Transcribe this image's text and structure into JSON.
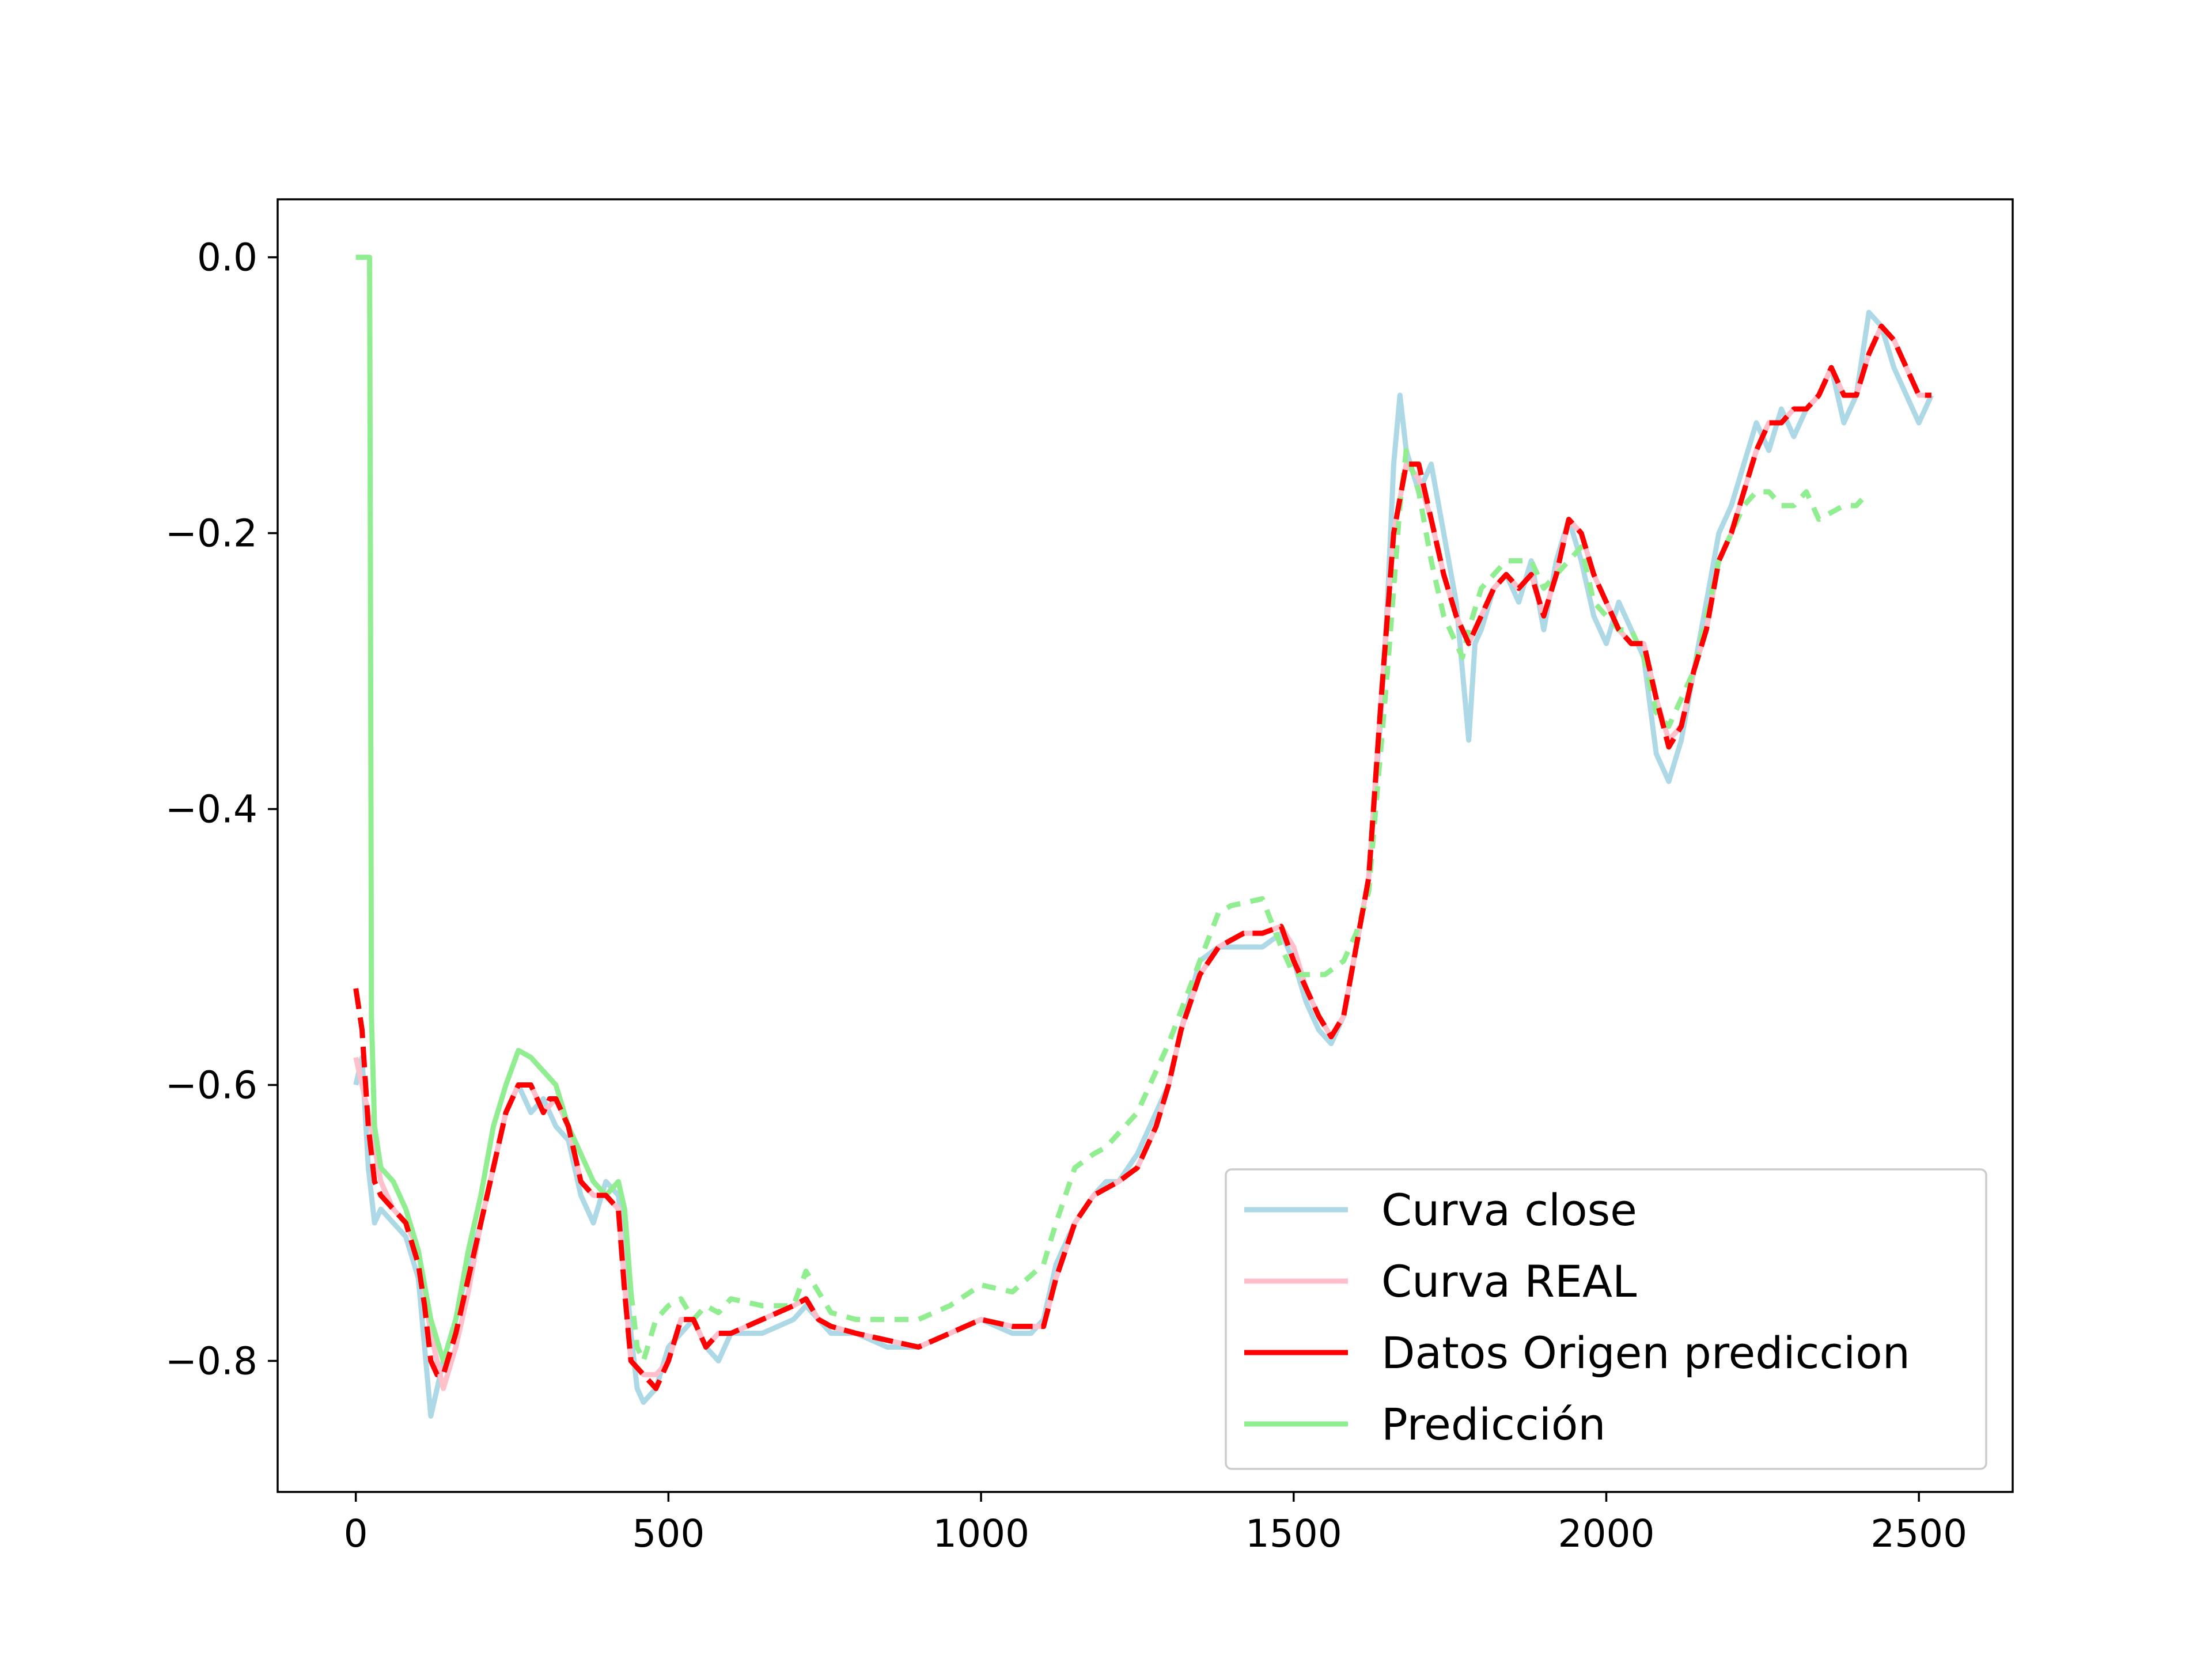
{
  "chart_data": {
    "type": "line",
    "title": "",
    "xlabel": "",
    "ylabel": "",
    "xlim": [
      -125,
      2650
    ],
    "ylim": [
      -0.895,
      0.042
    ],
    "x_ticks": [
      0,
      500,
      1000,
      1500,
      2000,
      2500
    ],
    "x_tick_labels": [
      "0",
      "500",
      "1000",
      "1500",
      "2000",
      "2500"
    ],
    "y_ticks": [
      0.0,
      -0.2,
      -0.4,
      -0.6,
      -0.8
    ],
    "y_tick_labels": [
      "0.0",
      "−0.2",
      "−0.4",
      "−0.6",
      "−0.8"
    ],
    "grid": false,
    "legend_position": "lower-right",
    "series": [
      {
        "name": "Curva close",
        "color": "#add8e6",
        "style": "solid",
        "x": [
          0,
          10,
          20,
          30,
          40,
          60,
          80,
          100,
          110,
          120,
          130,
          140,
          160,
          180,
          200,
          220,
          240,
          260,
          280,
          300,
          320,
          340,
          360,
          380,
          400,
          420,
          430,
          440,
          450,
          460,
          480,
          500,
          520,
          540,
          560,
          580,
          600,
          650,
          700,
          720,
          740,
          760,
          800,
          850,
          900,
          950,
          1000,
          1050,
          1080,
          1100,
          1120,
          1150,
          1180,
          1200,
          1220,
          1250,
          1280,
          1300,
          1320,
          1350,
          1380,
          1400,
          1420,
          1450,
          1480,
          1500,
          1520,
          1540,
          1560,
          1580,
          1600,
          1620,
          1640,
          1650,
          1660,
          1670,
          1680,
          1700,
          1720,
          1740,
          1760,
          1770,
          1780,
          1790,
          1800,
          1820,
          1840,
          1860,
          1880,
          1900,
          1920,
          1940,
          1960,
          1980,
          2000,
          2020,
          2040,
          2060,
          2080,
          2100,
          2120,
          2140,
          2160,
          2180,
          2200,
          2220,
          2240,
          2260,
          2280,
          2300,
          2320,
          2340,
          2360,
          2380,
          2400,
          2420,
          2440,
          2460,
          2480,
          2500,
          2520
        ],
        "y": [
          -0.6,
          -0.58,
          -0.66,
          -0.7,
          -0.69,
          -0.7,
          -0.71,
          -0.74,
          -0.79,
          -0.84,
          -0.82,
          -0.8,
          -0.77,
          -0.73,
          -0.7,
          -0.66,
          -0.62,
          -0.6,
          -0.62,
          -0.61,
          -0.63,
          -0.64,
          -0.68,
          -0.7,
          -0.67,
          -0.68,
          -0.72,
          -0.78,
          -0.82,
          -0.83,
          -0.82,
          -0.79,
          -0.78,
          -0.77,
          -0.79,
          -0.8,
          -0.78,
          -0.78,
          -0.77,
          -0.76,
          -0.77,
          -0.78,
          -0.78,
          -0.79,
          -0.79,
          -0.78,
          -0.77,
          -0.78,
          -0.78,
          -0.77,
          -0.73,
          -0.7,
          -0.68,
          -0.67,
          -0.67,
          -0.65,
          -0.62,
          -0.6,
          -0.56,
          -0.51,
          -0.5,
          -0.5,
          -0.5,
          -0.5,
          -0.49,
          -0.51,
          -0.54,
          -0.56,
          -0.57,
          -0.55,
          -0.5,
          -0.45,
          -0.33,
          -0.25,
          -0.15,
          -0.1,
          -0.14,
          -0.17,
          -0.15,
          -0.2,
          -0.25,
          -0.3,
          -0.35,
          -0.28,
          -0.27,
          -0.24,
          -0.23,
          -0.25,
          -0.22,
          -0.27,
          -0.22,
          -0.19,
          -0.22,
          -0.26,
          -0.28,
          -0.25,
          -0.27,
          -0.29,
          -0.36,
          -0.38,
          -0.35,
          -0.3,
          -0.25,
          -0.2,
          -0.18,
          -0.15,
          -0.12,
          -0.14,
          -0.11,
          -0.13,
          -0.11,
          -0.1,
          -0.08,
          -0.12,
          -0.1,
          -0.04,
          -0.05,
          -0.08,
          -0.1,
          -0.12,
          -0.1
        ]
      },
      {
        "name": "Curva REAL",
        "color": "#ffc0cb",
        "style": "solid",
        "x": [
          0,
          20,
          40,
          60,
          80,
          100,
          120,
          140,
          160,
          180,
          200,
          220,
          240,
          260,
          280,
          300,
          320,
          340,
          360,
          380,
          400,
          420,
          440,
          460,
          480,
          500,
          520,
          540,
          560,
          580,
          600,
          650,
          700,
          720,
          740,
          760,
          800,
          850,
          900,
          950,
          1000,
          1050,
          1100,
          1120,
          1150,
          1180,
          1200,
          1220,
          1250,
          1280,
          1300,
          1320,
          1350,
          1380,
          1400,
          1420,
          1450,
          1480,
          1500,
          1520,
          1540,
          1560,
          1580,
          1600,
          1620,
          1640,
          1660,
          1680,
          1700,
          1720,
          1740,
          1760,
          1780,
          1800,
          1820,
          1840,
          1860,
          1880,
          1900,
          1920,
          1940,
          1960,
          1980,
          2000,
          2020,
          2040,
          2060,
          2080,
          2100,
          2120,
          2140,
          2160,
          2180,
          2200,
          2220,
          2240,
          2260,
          2280,
          2300,
          2320,
          2340,
          2360,
          2380,
          2400,
          2420,
          2440,
          2460,
          2480,
          2500,
          2520
        ],
        "y": [
          -0.58,
          -0.62,
          -0.67,
          -0.69,
          -0.7,
          -0.72,
          -0.78,
          -0.82,
          -0.79,
          -0.75,
          -0.7,
          -0.66,
          -0.62,
          -0.6,
          -0.6,
          -0.62,
          -0.61,
          -0.63,
          -0.67,
          -0.68,
          -0.68,
          -0.69,
          -0.8,
          -0.81,
          -0.81,
          -0.8,
          -0.77,
          -0.77,
          -0.79,
          -0.78,
          -0.78,
          -0.77,
          -0.76,
          -0.755,
          -0.77,
          -0.775,
          -0.78,
          -0.785,
          -0.79,
          -0.78,
          -0.77,
          -0.775,
          -0.775,
          -0.74,
          -0.7,
          -0.68,
          -0.675,
          -0.67,
          -0.66,
          -0.63,
          -0.6,
          -0.56,
          -0.52,
          -0.5,
          -0.495,
          -0.49,
          -0.49,
          -0.485,
          -0.5,
          -0.53,
          -0.55,
          -0.565,
          -0.55,
          -0.5,
          -0.45,
          -0.32,
          -0.2,
          -0.15,
          -0.16,
          -0.19,
          -0.23,
          -0.26,
          -0.28,
          -0.26,
          -0.24,
          -0.23,
          -0.24,
          -0.23,
          -0.26,
          -0.23,
          -0.19,
          -0.2,
          -0.23,
          -0.25,
          -0.27,
          -0.28,
          -0.28,
          -0.32,
          -0.35,
          -0.34,
          -0.3,
          -0.27,
          -0.22,
          -0.2,
          -0.17,
          -0.14,
          -0.12,
          -0.12,
          -0.11,
          -0.11,
          -0.1,
          -0.08,
          -0.1,
          -0.1,
          -0.07,
          -0.05,
          -0.06,
          -0.08,
          -0.1,
          -0.1
        ]
      },
      {
        "name": "Datos Origen prediccion",
        "color": "#ff0000",
        "style": "dashed",
        "x": [
          0,
          10,
          20,
          30,
          40,
          60,
          80,
          100,
          110,
          120,
          130,
          140,
          160,
          180,
          200,
          220,
          240,
          260,
          280,
          300,
          310,
          320,
          340,
          360,
          380,
          400,
          420,
          430,
          440,
          460,
          480,
          500,
          520,
          540,
          560,
          580,
          600,
          650,
          700,
          720,
          740,
          760,
          800,
          850,
          900,
          950,
          1000,
          1050,
          1100,
          1120,
          1150,
          1180,
          1200,
          1220,
          1250,
          1280,
          1300,
          1320,
          1350,
          1380,
          1400,
          1420,
          1450,
          1480,
          1500,
          1520,
          1540,
          1560,
          1580,
          1600,
          1620,
          1640,
          1660,
          1680,
          1700,
          1720,
          1740,
          1760,
          1780,
          1800,
          1820,
          1840,
          1860,
          1880,
          1900,
          1920,
          1940,
          1960,
          1980,
          2000,
          2020,
          2040,
          2060,
          2080,
          2100,
          2120,
          2140,
          2160,
          2180,
          2200,
          2220,
          2240,
          2260,
          2280,
          2300,
          2320,
          2340,
          2360,
          2380,
          2400,
          2420,
          2440,
          2460,
          2480,
          2500,
          2520
        ],
        "y": [
          -0.53,
          -0.56,
          -0.63,
          -0.67,
          -0.68,
          -0.69,
          -0.7,
          -0.73,
          -0.76,
          -0.8,
          -0.81,
          -0.81,
          -0.78,
          -0.74,
          -0.7,
          -0.66,
          -0.62,
          -0.6,
          -0.6,
          -0.62,
          -0.61,
          -0.61,
          -0.63,
          -0.67,
          -0.68,
          -0.68,
          -0.69,
          -0.75,
          -0.8,
          -0.81,
          -0.82,
          -0.8,
          -0.77,
          -0.77,
          -0.79,
          -0.78,
          -0.78,
          -0.77,
          -0.76,
          -0.755,
          -0.77,
          -0.775,
          -0.78,
          -0.785,
          -0.79,
          -0.78,
          -0.77,
          -0.775,
          -0.775,
          -0.74,
          -0.7,
          -0.68,
          -0.675,
          -0.67,
          -0.66,
          -0.63,
          -0.6,
          -0.56,
          -0.52,
          -0.5,
          -0.495,
          -0.49,
          -0.49,
          -0.485,
          -0.51,
          -0.53,
          -0.55,
          -0.565,
          -0.55,
          -0.5,
          -0.45,
          -0.32,
          -0.2,
          -0.15,
          -0.15,
          -0.19,
          -0.23,
          -0.26,
          -0.28,
          -0.26,
          -0.24,
          -0.23,
          -0.24,
          -0.23,
          -0.26,
          -0.23,
          -0.19,
          -0.2,
          -0.23,
          -0.25,
          -0.27,
          -0.28,
          -0.28,
          -0.32,
          -0.355,
          -0.34,
          -0.3,
          -0.27,
          -0.22,
          -0.2,
          -0.17,
          -0.14,
          -0.12,
          -0.12,
          -0.11,
          -0.11,
          -0.1,
          -0.08,
          -0.1,
          -0.1,
          -0.07,
          -0.05,
          -0.06,
          -0.08,
          -0.1,
          -0.1
        ]
      },
      {
        "name": "Predicción",
        "color": "#90ee90",
        "style": "mixed",
        "x": [
          0,
          22,
          23,
          25,
          30,
          40,
          60,
          80,
          100,
          120,
          140,
          160,
          180,
          200,
          220,
          240,
          260,
          280,
          300,
          320,
          340,
          360,
          380,
          400,
          420,
          430,
          440,
          450,
          460,
          480,
          500,
          520,
          540,
          560,
          580,
          600,
          650,
          700,
          720,
          740,
          760,
          800,
          850,
          900,
          950,
          1000,
          1050,
          1100,
          1120,
          1150,
          1180,
          1200,
          1250,
          1300,
          1350,
          1380,
          1400,
          1450,
          1480,
          1500,
          1550,
          1580,
          1600,
          1620,
          1650,
          1670,
          1680,
          1700,
          1720,
          1740,
          1760,
          1770,
          1780,
          1800,
          1840,
          1880,
          1900,
          1940,
          1960,
          1980,
          2000,
          2020,
          2040,
          2060,
          2080,
          2100,
          2120,
          2140,
          2160,
          2180,
          2200,
          2220,
          2240,
          2260,
          2280,
          2300,
          2320,
          2340,
          2360,
          2380,
          2400,
          2420
        ],
        "y": [
          0.0,
          0.0,
          -0.15,
          -0.55,
          -0.63,
          -0.66,
          -0.67,
          -0.69,
          -0.72,
          -0.77,
          -0.8,
          -0.77,
          -0.72,
          -0.68,
          -0.63,
          -0.6,
          -0.575,
          -0.58,
          -0.59,
          -0.6,
          -0.63,
          -0.65,
          -0.67,
          -0.68,
          -0.67,
          -0.69,
          -0.75,
          -0.79,
          -0.8,
          -0.77,
          -0.76,
          -0.755,
          -0.77,
          -0.76,
          -0.765,
          -0.755,
          -0.76,
          -0.76,
          -0.735,
          -0.75,
          -0.765,
          -0.77,
          -0.77,
          -0.77,
          -0.76,
          -0.745,
          -0.75,
          -0.73,
          -0.7,
          -0.66,
          -0.65,
          -0.645,
          -0.62,
          -0.57,
          -0.51,
          -0.475,
          -0.47,
          -0.465,
          -0.5,
          -0.52,
          -0.52,
          -0.51,
          -0.49,
          -0.46,
          -0.3,
          -0.18,
          -0.14,
          -0.17,
          -0.22,
          -0.26,
          -0.28,
          -0.29,
          -0.27,
          -0.24,
          -0.22,
          -0.22,
          -0.24,
          -0.22,
          -0.21,
          -0.25,
          -0.26,
          -0.27,
          -0.27,
          -0.29,
          -0.33,
          -0.34,
          -0.32,
          -0.3,
          -0.26,
          -0.22,
          -0.2,
          -0.18,
          -0.17,
          -0.17,
          -0.18,
          -0.18,
          -0.17,
          -0.19,
          -0.185,
          -0.18,
          -0.18,
          -0.17
        ]
      }
    ]
  }
}
